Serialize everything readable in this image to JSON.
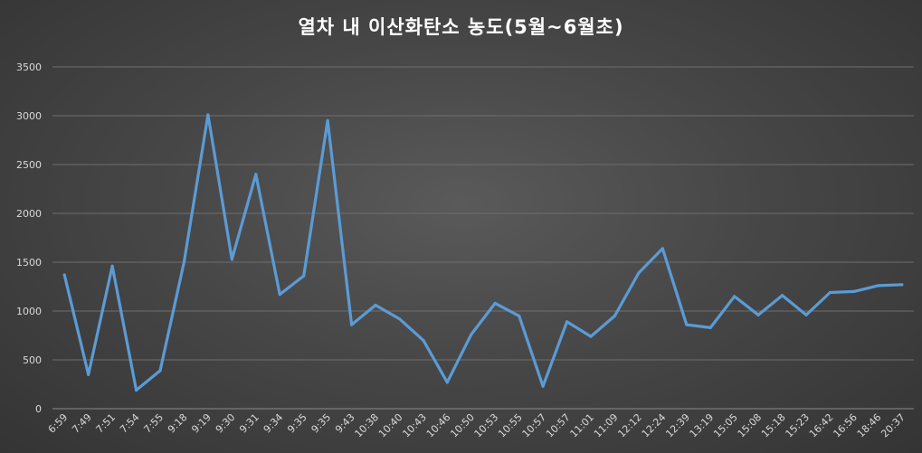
{
  "chart_data": {
    "type": "line",
    "title": "열차 내 이산화탄소 농도(5월~6월초)",
    "xlabel": "",
    "ylabel": "",
    "ylim": [
      0,
      3500
    ],
    "yticks": [
      0,
      500,
      1000,
      1500,
      2000,
      2500,
      3000,
      3500
    ],
    "grid": true,
    "legend": "none",
    "line_color": "#5b9bd5",
    "categories": [
      "6:59",
      "7:49",
      "7:51",
      "7:54",
      "7:55",
      "9:18",
      "9:19",
      "9:30",
      "9:31",
      "9:34",
      "9:35",
      "9:35",
      "9:43",
      "10:38",
      "10:40",
      "10:43",
      "10:46",
      "10:50",
      "10:53",
      "10:55",
      "10:57",
      "10:57",
      "11:01",
      "11:09",
      "12:12",
      "12:24",
      "12:39",
      "13:19",
      "15:05",
      "15:08",
      "15:18",
      "15:23",
      "16:42",
      "16:56",
      "18:46",
      "20:37"
    ],
    "series": [
      {
        "values": [
          1370,
          350,
          1460,
          190,
          390,
          1500,
          3010,
          1530,
          2400,
          1170,
          1360,
          2950,
          860,
          1060,
          920,
          700,
          270,
          760,
          1080,
          950,
          230,
          890,
          740,
          950,
          1390,
          1640,
          860,
          830,
          1150,
          960,
          1160,
          960,
          1190,
          1200,
          1260,
          1270
        ]
      }
    ]
  }
}
